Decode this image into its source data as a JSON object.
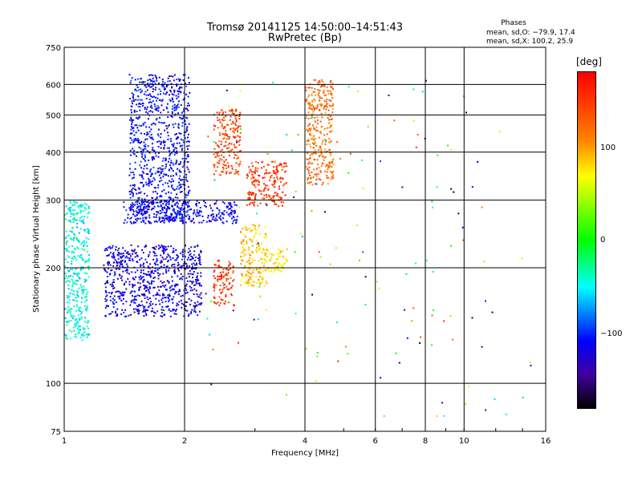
{
  "header": {
    "title_line1": "Tromsø 20141125 14:50:00–14:51:43",
    "title_line2": "RwPretec (Bp)",
    "phases_heading": "Phases",
    "phases_o": "mean, sd,O: −79.9, 17.4",
    "phases_x": "mean, sd,X: 100.2, 25.9"
  },
  "colorbar": {
    "unit_label": "[deg]",
    "range": [
      -180,
      180
    ],
    "ticks": [
      "100",
      "0",
      "−100"
    ]
  },
  "chart_data": {
    "type": "scatter",
    "title": "Tromsø 20141125 14:50:00–14:51:43",
    "subtitle": "RwPretec (Bp)",
    "xlabel": "Frequency [MHz]",
    "ylabel": "Stationary phase Virtual Height [km]",
    "xscale": "log",
    "yscale": "log",
    "xlim": [
      1,
      16
    ],
    "ylim": [
      75,
      750
    ],
    "xticks": [
      1,
      2,
      4,
      6,
      8,
      10,
      16
    ],
    "yticks": [
      75,
      100,
      200,
      300,
      400,
      500,
      600,
      750
    ],
    "grid": true,
    "color_encodes": "phase [deg]",
    "clusters": [
      {
        "freq_range": [
          1.45,
          2.05
        ],
        "height_range": [
          265,
          640
        ],
        "phase_deg": -110
      },
      {
        "freq_range": [
          1.25,
          2.2
        ],
        "height_range": [
          150,
          230
        ],
        "phase_deg": -120
      },
      {
        "freq_range": [
          1.0,
          1.15
        ],
        "height_range": [
          130,
          300
        ],
        "phase_deg": -45
      },
      {
        "freq_range": [
          1.4,
          2.7
        ],
        "height_range": [
          262,
          300
        ],
        "phase_deg": -115
      },
      {
        "freq_range": [
          2.35,
          2.75
        ],
        "height_range": [
          350,
          520
        ],
        "phase_deg": 140
      },
      {
        "freq_range": [
          2.35,
          2.65
        ],
        "height_range": [
          160,
          210
        ],
        "phase_deg": 150
      },
      {
        "freq_range": [
          2.75,
          3.2
        ],
        "height_range": [
          180,
          260
        ],
        "phase_deg": 85
      },
      {
        "freq_range": [
          3.2,
          3.6
        ],
        "height_range": [
          195,
          225
        ],
        "phase_deg": 75
      },
      {
        "freq_range": [
          2.85,
          3.6
        ],
        "height_range": [
          290,
          380
        ],
        "phase_deg": 150
      },
      {
        "freq_range": [
          4.0,
          4.7
        ],
        "height_range": [
          330,
          620
        ],
        "phase_deg": 120
      }
    ]
  }
}
